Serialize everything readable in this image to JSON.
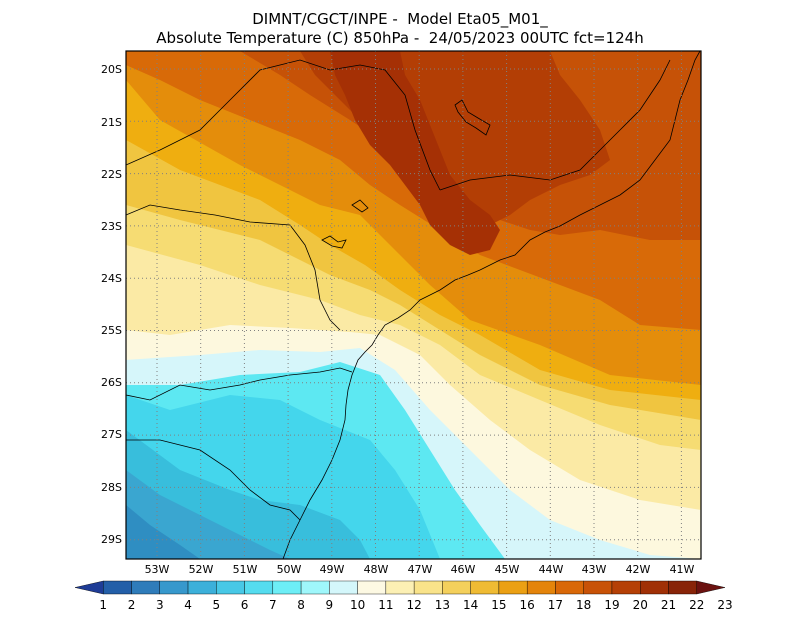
{
  "header": {
    "line1": "DIMNT/CGCT/INPE -  Model Eta05_M01_",
    "line2": "Absolute Temperature (C) 850hPa -  24/05/2023 00UTC fct=124h"
  },
  "map": {
    "lat_labels": [
      "20S",
      "21S",
      "22S",
      "23S",
      "24S",
      "25S",
      "26S",
      "27S",
      "28S",
      "29S"
    ],
    "lon_labels": [
      "53W",
      "52W",
      "51W",
      "50W",
      "49W",
      "48W",
      "47W",
      "46W",
      "45W",
      "44W",
      "43W",
      "42W",
      "41W"
    ],
    "grid": "dotted",
    "colors": {
      "t10": "#5de8f2",
      "t9": "#44d6ec",
      "t8": "#38bedc",
      "t7": "#3aa6d0",
      "t6": "#2f8ec2",
      "t11": "#d6f6fa",
      "t12": "#fdf8de",
      "t13": "#fbeaa5",
      "t14": "#f6dc73",
      "t15": "#f0c540",
      "t16": "#efae10",
      "t17": "#e48d0b",
      "t18": "#d86a08",
      "t19": "#c65207",
      "t20": "#b33e05",
      "t21": "#a53005"
    }
  },
  "colorbar": {
    "labels": [
      "1",
      "2",
      "3",
      "4",
      "5",
      "6",
      "7",
      "8",
      "9",
      "10",
      "11",
      "12",
      "13",
      "14",
      "15",
      "16",
      "17",
      "18",
      "19",
      "20",
      "21",
      "22",
      "23"
    ],
    "colors": [
      "#1e3c96",
      "#235fa8",
      "#2f7cba",
      "#3798cc",
      "#3cb0da",
      "#48c8e6",
      "#55dcef",
      "#6deef6",
      "#9ff7fb",
      "#d4f7fb",
      "#fdf9e3",
      "#fcf0b4",
      "#f9e38a",
      "#f4d05c",
      "#efbb34",
      "#eba014",
      "#e4840b",
      "#d96808",
      "#c85207",
      "#b54006",
      "#a03006",
      "#882408",
      "#6b1210"
    ]
  }
}
